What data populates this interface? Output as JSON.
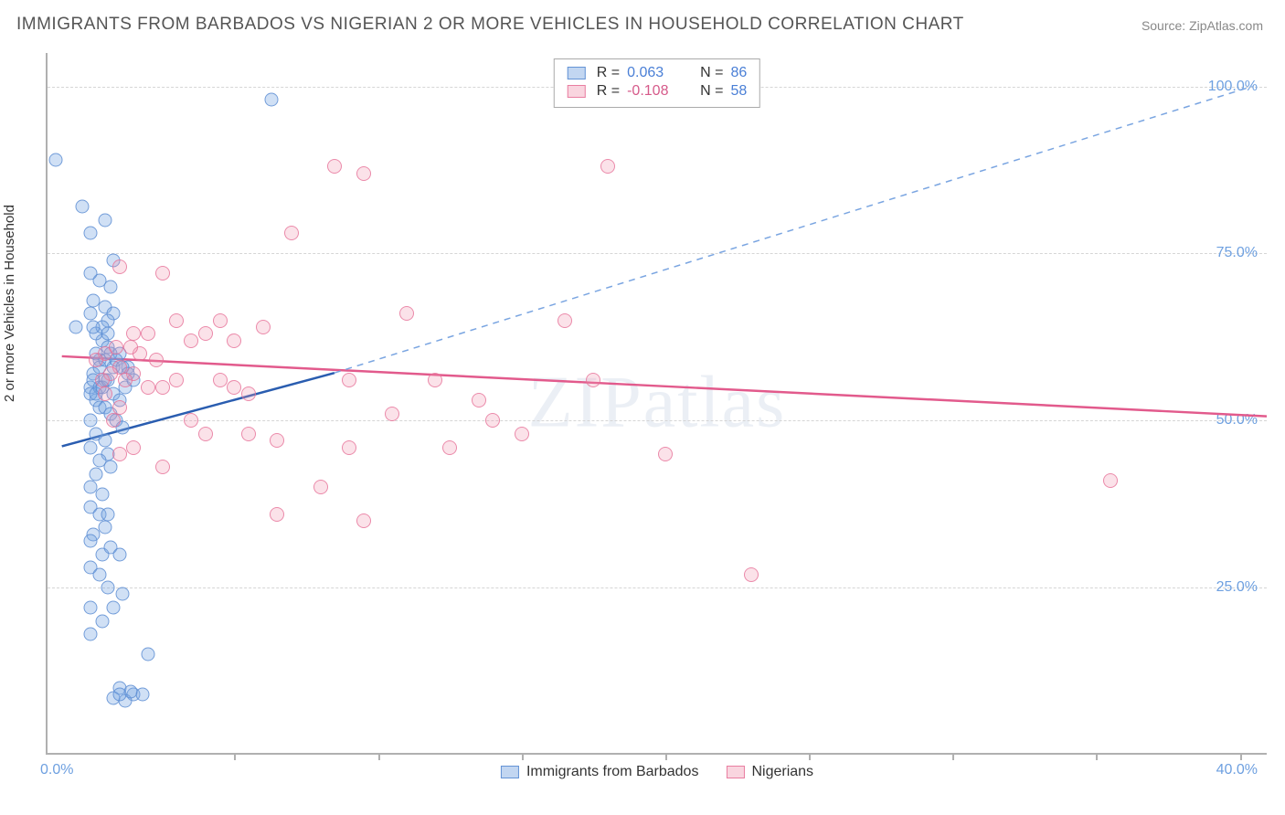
{
  "title": "IMMIGRANTS FROM BARBADOS VS NIGERIAN 2 OR MORE VEHICLES IN HOUSEHOLD CORRELATION CHART",
  "source": "Source: ZipAtlas.com",
  "watermark": "ZIPatlas",
  "chart": {
    "type": "scatter",
    "background_color": "#ffffff",
    "axis_color": "#b0b0b0",
    "grid_color": "#d5d5d5",
    "tick_label_color": "#6ea0e0",
    "tick_fontsize": 16,
    "title_fontsize": 19,
    "title_color": "#555555",
    "ylabel": "2 or more Vehicles in Household",
    "ylabel_fontsize": 15,
    "ylabel_color": "#333333",
    "xlim": [
      -1.5,
      41
    ],
    "ylim": [
      0,
      105
    ],
    "x_left_label": "0.0%",
    "x_right_label": "40.0%",
    "x_tick_positions": [
      5,
      10,
      15,
      20,
      25,
      30,
      35,
      40
    ],
    "y_gridlines": [
      25,
      50,
      75,
      100
    ],
    "y_tick_labels": [
      "25.0%",
      "50.0%",
      "75.0%",
      "100.0%"
    ],
    "marker_radius_blue": 7.5,
    "marker_radius_pink": 8,
    "series_blue": {
      "name": "Immigrants from Barbados",
      "fill": "rgba(120,165,225,0.35)",
      "stroke": "rgba(90,140,210,0.8)",
      "R": "0.063",
      "N": "86",
      "trend_solid": {
        "x1": -1.0,
        "y1": 46,
        "x2": 8.5,
        "y2": 57,
        "color": "#2a5db0",
        "width": 2.5
      },
      "trend_dashed": {
        "x1": 8.5,
        "y1": 57,
        "x2": 40.5,
        "y2": 100,
        "color": "#7aa5e1",
        "width": 1.5,
        "dash": "7 6"
      },
      "points": [
        [
          0.0,
          55
        ],
        [
          0.1,
          57
        ],
        [
          0.2,
          53
        ],
        [
          0.3,
          59
        ],
        [
          0.0,
          54
        ],
        [
          0.1,
          56
        ],
        [
          0.3,
          55
        ],
        [
          0.5,
          56
        ],
        [
          0.2,
          60
        ],
        [
          0.4,
          62
        ],
        [
          0.6,
          61
        ],
        [
          0.8,
          58
        ],
        [
          0.3,
          52
        ],
        [
          0.0,
          66
        ],
        [
          0.1,
          68
        ],
        [
          0.5,
          67
        ],
        [
          0.3,
          71
        ],
        [
          0.7,
          70
        ],
        [
          0.0,
          72
        ],
        [
          0.8,
          66
        ],
        [
          0.6,
          65
        ],
        [
          1.0,
          60
        ],
        [
          1.3,
          58
        ],
        [
          1.2,
          55
        ],
        [
          0.0,
          50
        ],
        [
          0.2,
          48
        ],
        [
          0.5,
          47
        ],
        [
          0.6,
          45
        ],
        [
          0.3,
          44
        ],
        [
          0.0,
          46
        ],
        [
          0.2,
          42
        ],
        [
          0.7,
          43
        ],
        [
          0.0,
          40
        ],
        [
          0.4,
          39
        ],
        [
          0.0,
          37
        ],
        [
          0.3,
          36
        ],
        [
          0.5,
          34
        ],
        [
          0.1,
          33
        ],
        [
          0.6,
          36
        ],
        [
          0.0,
          32
        ],
        [
          0.4,
          30
        ],
        [
          0.7,
          31
        ],
        [
          1.0,
          30
        ],
        [
          0.0,
          28
        ],
        [
          0.3,
          27
        ],
        [
          0.6,
          25
        ],
        [
          1.1,
          24
        ],
        [
          0.0,
          22
        ],
        [
          0.8,
          22
        ],
        [
          2.0,
          15
        ],
        [
          0.4,
          20
        ],
        [
          0.0,
          18
        ],
        [
          0.5,
          80
        ],
        [
          0.0,
          78
        ],
        [
          0.8,
          74
        ],
        [
          -0.3,
          82
        ],
        [
          -0.5,
          64
        ],
        [
          1.0,
          10
        ],
        [
          1.5,
          9
        ],
        [
          1.2,
          8
        ],
        [
          0.8,
          8.5
        ],
        [
          1.8,
          9
        ],
        [
          1.4,
          9.5
        ],
        [
          1.0,
          9
        ],
        [
          0.2,
          54
        ],
        [
          0.4,
          55
        ],
        [
          0.6,
          56
        ],
        [
          0.8,
          54
        ],
        [
          1.0,
          53
        ],
        [
          0.5,
          52
        ],
        [
          0.7,
          51
        ],
        [
          0.9,
          50
        ],
        [
          1.1,
          49
        ],
        [
          0.3,
          58
        ],
        [
          0.5,
          59
        ],
        [
          0.7,
          60
        ],
        [
          0.9,
          59
        ],
        [
          1.1,
          58
        ],
        [
          1.3,
          57
        ],
        [
          1.5,
          56
        ],
        [
          0.2,
          63
        ],
        [
          0.4,
          64
        ],
        [
          0.1,
          64
        ],
        [
          0.6,
          63
        ],
        [
          6.3,
          98
        ],
        [
          -1.2,
          89
        ]
      ]
    },
    "series_pink": {
      "name": "Nigerians",
      "fill": "rgba(240,150,175,0.28)",
      "stroke": "rgba(230,110,150,0.75)",
      "R": "-0.108",
      "N": "58",
      "trend_solid": {
        "x1": -1.0,
        "y1": 59.5,
        "x2": 41,
        "y2": 50.5,
        "color": "#e25a8c",
        "width": 2.5
      },
      "points": [
        [
          0.5,
          60
        ],
        [
          1.0,
          58
        ],
        [
          1.5,
          57
        ],
        [
          2.0,
          55
        ],
        [
          1.0,
          52
        ],
        [
          0.8,
          50
        ],
        [
          0.5,
          54
        ],
        [
          1.2,
          56
        ],
        [
          2.5,
          55
        ],
        [
          3.0,
          56
        ],
        [
          4.5,
          56
        ],
        [
          5.0,
          55
        ],
        [
          5.5,
          54
        ],
        [
          3.5,
          62
        ],
        [
          4.0,
          63
        ],
        [
          5.0,
          62
        ],
        [
          3.0,
          65
        ],
        [
          2.0,
          63
        ],
        [
          1.5,
          63
        ],
        [
          1.0,
          73
        ],
        [
          2.5,
          72
        ],
        [
          4.5,
          65
        ],
        [
          6.0,
          64
        ],
        [
          6.5,
          47
        ],
        [
          3.5,
          50
        ],
        [
          4.0,
          48
        ],
        [
          5.5,
          48
        ],
        [
          2.5,
          43
        ],
        [
          1.5,
          46
        ],
        [
          1.0,
          45
        ],
        [
          8.5,
          88
        ],
        [
          9.5,
          87
        ],
        [
          7.0,
          78
        ],
        [
          11.0,
          66
        ],
        [
          9.0,
          56
        ],
        [
          10.5,
          51
        ],
        [
          9.0,
          46
        ],
        [
          12.0,
          56
        ],
        [
          8.0,
          40
        ],
        [
          9.5,
          35
        ],
        [
          6.5,
          36
        ],
        [
          12.5,
          46
        ],
        [
          15.0,
          48
        ],
        [
          17.5,
          56
        ],
        [
          18.0,
          88
        ],
        [
          16.5,
          65
        ],
        [
          20.0,
          45
        ],
        [
          23.0,
          27
        ],
        [
          35.5,
          41
        ],
        [
          14.0,
          50
        ],
        [
          13.5,
          53
        ],
        [
          1.7,
          60
        ],
        [
          2.3,
          59
        ],
        [
          0.7,
          57
        ],
        [
          0.4,
          56
        ],
        [
          0.2,
          59
        ],
        [
          1.4,
          61
        ],
        [
          0.9,
          61
        ]
      ]
    },
    "legend": {
      "bottom_items": [
        "Immigrants from Barbados",
        "Nigerians"
      ]
    }
  }
}
